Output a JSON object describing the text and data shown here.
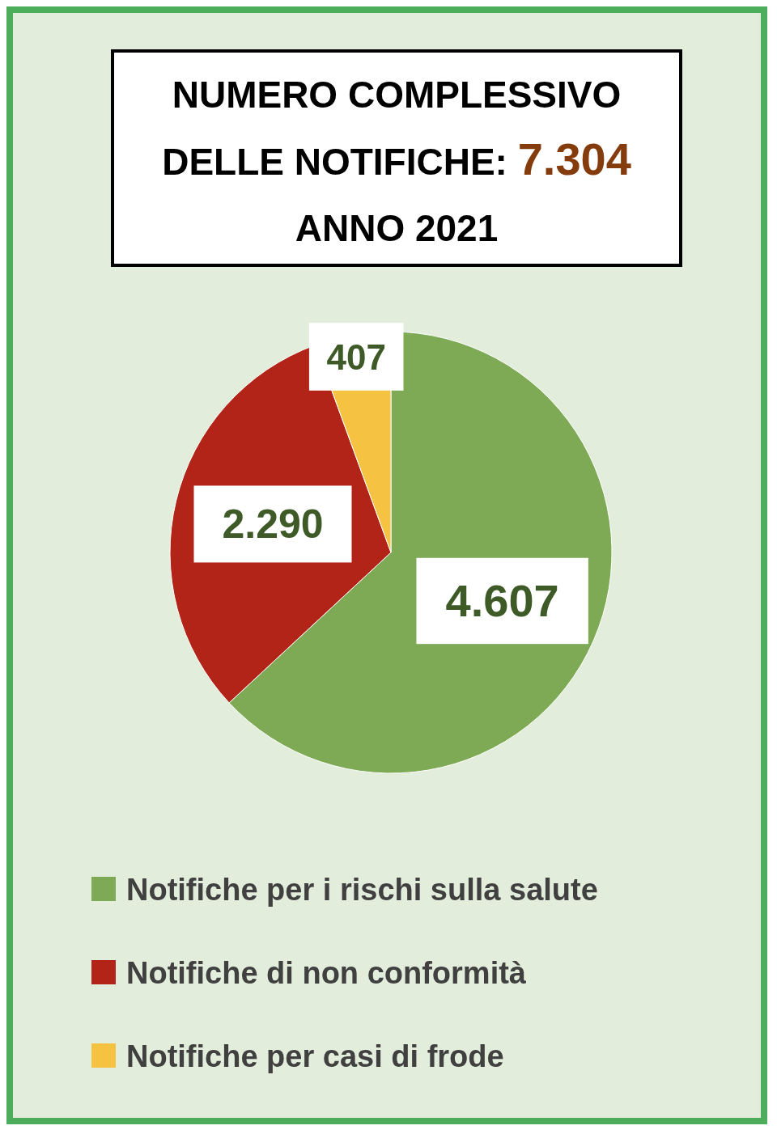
{
  "chart_data": {
    "type": "pie",
    "title": "NUMERO COMPLESSIVO DELLE NOTIFICHE: 7.304",
    "subtitle": "ANNO 2021",
    "categories": [
      "Notifiche per i rischi sulla salute",
      "Notifiche di non conformità",
      "Notifiche per casi di frode"
    ],
    "values": [
      4607,
      2290,
      407
    ],
    "value_labels": [
      "4.607",
      "2.290",
      "407"
    ],
    "colors": [
      "#7eaa55",
      "#b22418",
      "#f5c242"
    ],
    "legend": "bottom"
  }
}
